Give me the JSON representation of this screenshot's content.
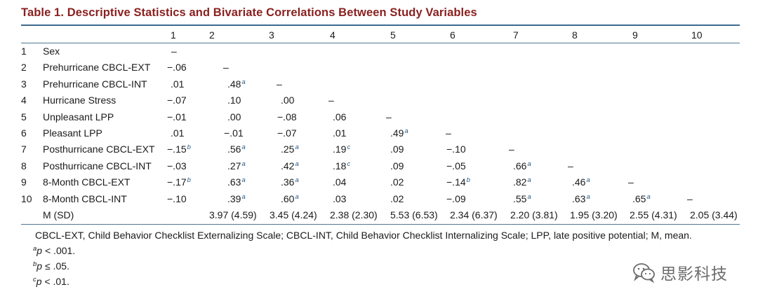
{
  "title": "Table 1. Descriptive Statistics and Bivariate Correlations Between Study Variables",
  "columns": [
    "1",
    "2",
    "3",
    "4",
    "5",
    "6",
    "7",
    "8",
    "9",
    "10"
  ],
  "rows": [
    {
      "num": "1",
      "label": "Sex",
      "cells": [
        {
          "v": "–"
        }
      ]
    },
    {
      "num": "2",
      "label": "Prehurricane CBCL-EXT",
      "cells": [
        {
          "v": "−.06"
        },
        {
          "v": "–"
        }
      ]
    },
    {
      "num": "3",
      "label": "Prehurricane CBCL-INT",
      "cells": [
        {
          "v": ".01"
        },
        {
          "v": ".48",
          "s": "a"
        },
        {
          "v": "–"
        }
      ]
    },
    {
      "num": "4",
      "label": "Hurricane Stress",
      "cells": [
        {
          "v": "−.07"
        },
        {
          "v": ".10"
        },
        {
          "v": ".00"
        },
        {
          "v": "–"
        }
      ]
    },
    {
      "num": "5",
      "label": "Unpleasant LPP",
      "cells": [
        {
          "v": "−.01"
        },
        {
          "v": ".00"
        },
        {
          "v": "−.08"
        },
        {
          "v": ".06"
        },
        {
          "v": "–"
        }
      ]
    },
    {
      "num": "6",
      "label": "Pleasant LPP",
      "cells": [
        {
          "v": ".01"
        },
        {
          "v": "−.01"
        },
        {
          "v": "−.07"
        },
        {
          "v": ".01"
        },
        {
          "v": ".49",
          "s": "a"
        },
        {
          "v": "–"
        }
      ]
    },
    {
      "num": "7",
      "label": "Posthurricane CBCL-EXT",
      "cells": [
        {
          "v": "−.15",
          "s": "b"
        },
        {
          "v": ".56",
          "s": "a"
        },
        {
          "v": ".25",
          "s": "a"
        },
        {
          "v": ".19",
          "s": "c"
        },
        {
          "v": ".09"
        },
        {
          "v": "−.10"
        },
        {
          "v": "–"
        }
      ]
    },
    {
      "num": "8",
      "label": "Posthurricane CBCL-INT",
      "cells": [
        {
          "v": "−.03"
        },
        {
          "v": ".27",
          "s": "a"
        },
        {
          "v": ".42",
          "s": "a"
        },
        {
          "v": ".18",
          "s": "c"
        },
        {
          "v": ".09"
        },
        {
          "v": "−.05"
        },
        {
          "v": ".66",
          "s": "a"
        },
        {
          "v": "–"
        }
      ]
    },
    {
      "num": "9",
      "label": "8-Month CBCL-EXT",
      "cells": [
        {
          "v": "−.17",
          "s": "b"
        },
        {
          "v": ".63",
          "s": "a"
        },
        {
          "v": ".36",
          "s": "a"
        },
        {
          "v": ".04"
        },
        {
          "v": ".02"
        },
        {
          "v": "−.14",
          "s": "b"
        },
        {
          "v": ".82",
          "s": "a"
        },
        {
          "v": ".46",
          "s": "a"
        },
        {
          "v": "–"
        }
      ]
    },
    {
      "num": "10",
      "label": "8-Month CBCL-INT",
      "cells": [
        {
          "v": "−.10"
        },
        {
          "v": ".39",
          "s": "a"
        },
        {
          "v": ".60",
          "s": "a"
        },
        {
          "v": ".03"
        },
        {
          "v": ".02"
        },
        {
          "v": "−.09"
        },
        {
          "v": ".55",
          "s": "a"
        },
        {
          "v": ".63",
          "s": "a"
        },
        {
          "v": ".65",
          "s": "a"
        },
        {
          "v": "–"
        }
      ]
    }
  ],
  "msd": {
    "label": "M (SD)",
    "values": [
      "",
      "3.97 (4.59)",
      "3.45 (4.24)",
      "2.38 (2.30)",
      "5.53 (6.53)",
      "2.34 (6.37)",
      "2.20 (3.81)",
      "1.95 (3.20)",
      "2.55 (4.31)",
      "2.05 (3.44)"
    ]
  },
  "note": "CBCL-EXT, Child Behavior Checklist Externalizing Scale; CBCL-INT, Child Behavior Checklist Internalizing Scale; LPP, late positive potential; M, mean.",
  "footnotes": [
    {
      "mark": "a",
      "p": "p",
      "rest": " < .001."
    },
    {
      "mark": "b",
      "p": "p",
      "rest": " ≤ .05."
    },
    {
      "mark": "c",
      "p": "p",
      "rest": " < .01."
    }
  ],
  "watermark": "思影科技",
  "watermark_icon": "wechat-logo-icon"
}
